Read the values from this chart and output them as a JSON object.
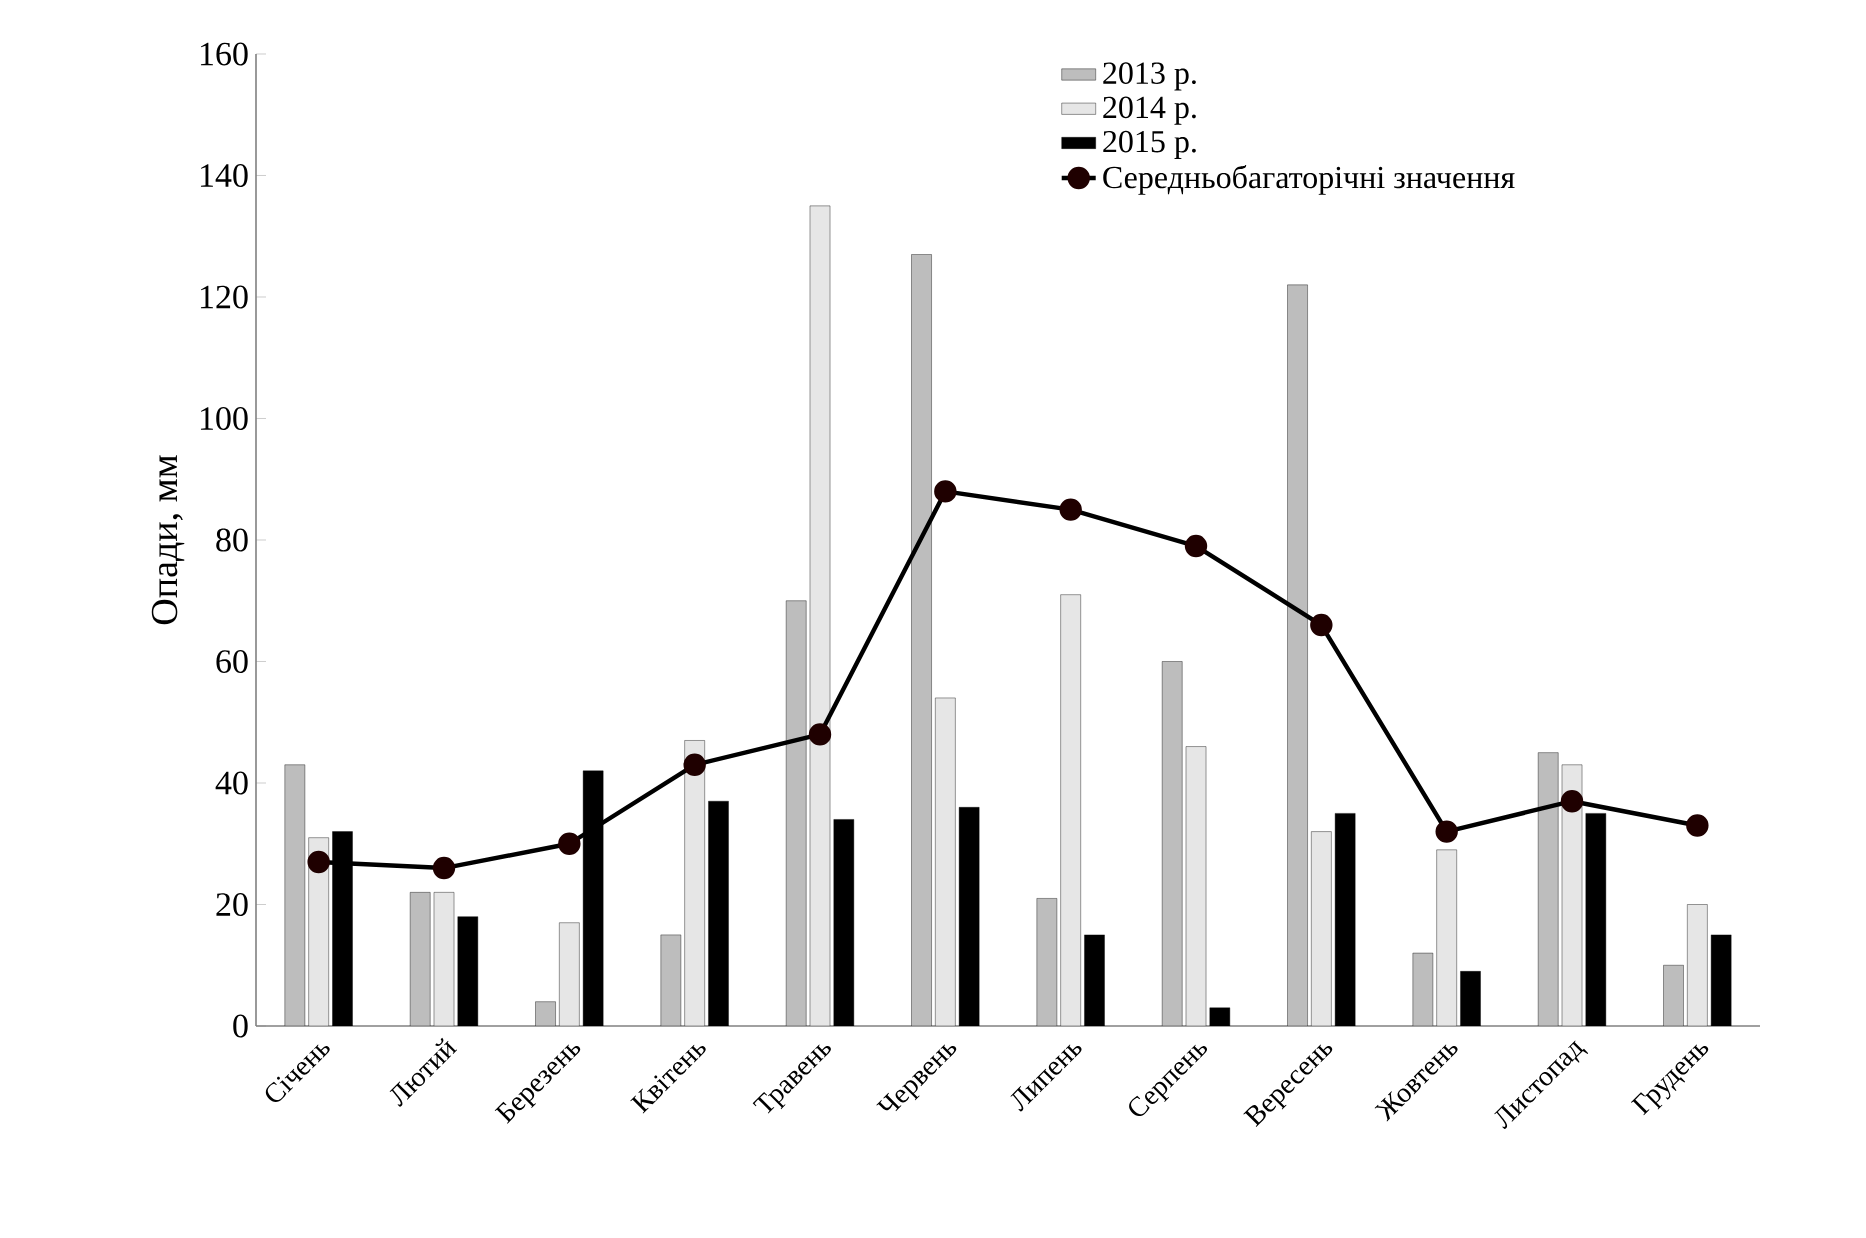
{
  "chart_data": {
    "type": "bar",
    "ylabel": "Опади, мм",
    "categories": [
      "Січень",
      "Лютий",
      "Березень",
      "Квітень",
      "Травень",
      "Червень",
      "Липень",
      "Серпень",
      "Вересень",
      "Жовтень",
      "Листопад",
      "Грудень"
    ],
    "series": [
      {
        "name": "2013 р.",
        "color": "#bdbdbd",
        "values": [
          43,
          22,
          4,
          15,
          70,
          127,
          21,
          60,
          122,
          12,
          45,
          10
        ]
      },
      {
        "name": "2014 р.",
        "color": "#e6e6e6",
        "values": [
          31,
          22,
          17,
          47,
          135,
          54,
          71,
          46,
          32,
          29,
          43,
          20
        ]
      },
      {
        "name": "2015 р.",
        "color": "#000000",
        "values": [
          32,
          18,
          42,
          37,
          34,
          36,
          15,
          3,
          35,
          9,
          35,
          15
        ]
      },
      {
        "name": "Середньобагаторічні значення",
        "type": "line",
        "color": "#000000",
        "marker": "circle",
        "values": [
          27,
          26,
          30,
          43,
          48,
          88,
          85,
          79,
          66,
          32,
          37,
          33
        ]
      }
    ],
    "ylim": [
      0,
      160
    ],
    "yticks": [
      0,
      20,
      40,
      60,
      80,
      100,
      120,
      140,
      160
    ],
    "grid": false,
    "legend": "top right"
  }
}
